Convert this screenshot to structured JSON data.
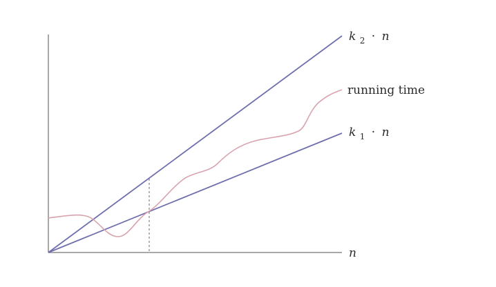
{
  "diagram": {
    "x_axis_label": "n",
    "upper_line": {
      "coefficient": "k",
      "subscript": "2",
      "operator": "·",
      "variable": "n"
    },
    "lower_line": {
      "coefficient": "k",
      "subscript": "1",
      "operator": "·",
      "variable": "n"
    },
    "curve_label": "running time",
    "colors": {
      "bound_lines": "#6f6fae",
      "running_time_curve": "#d8a3ad",
      "axes": "#8c8c8c",
      "dashed_marker": "#8c8c8c",
      "text": "#2b2b2b"
    }
  }
}
